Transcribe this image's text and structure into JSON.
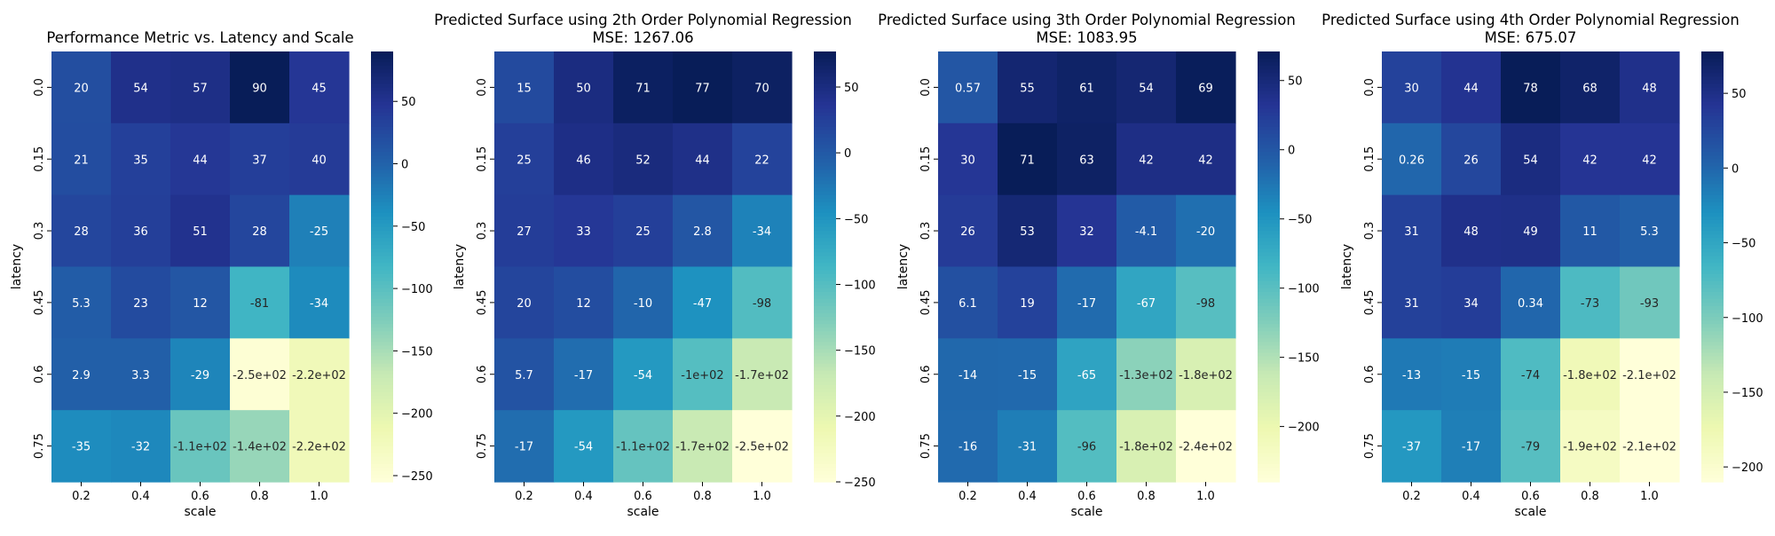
{
  "figure": {
    "colormap": "YlGnBu"
  },
  "chart_data": [
    {
      "type": "heatmap",
      "title": "Performance Metric vs. Latency and Scale",
      "subtitle": "",
      "xlabel": "scale",
      "ylabel": "latency",
      "x_ticks": [
        "0.2",
        "0.4",
        "0.6",
        "0.8",
        "1.0"
      ],
      "y_ticks": [
        "0.0",
        "0.15",
        "0.3",
        "0.45",
        "0.6",
        "0.75"
      ],
      "values": [
        [
          20,
          54,
          57,
          90,
          45
        ],
        [
          21,
          35,
          44,
          37,
          40
        ],
        [
          28,
          36,
          51,
          28,
          -25
        ],
        [
          5.3,
          23,
          12,
          -81,
          -34
        ],
        [
          2.9,
          3.3,
          -29,
          -250,
          -220
        ],
        [
          -35,
          -32,
          -110,
          -140,
          -220
        ]
      ],
      "labels": [
        [
          "20",
          "54",
          "57",
          "90",
          "45"
        ],
        [
          "21",
          "35",
          "44",
          "37",
          "40"
        ],
        [
          "28",
          "36",
          "51",
          "28",
          "-25"
        ],
        [
          "5.3",
          "23",
          "12",
          "-81",
          "-34"
        ],
        [
          "2.9",
          "3.3",
          "-29",
          "-2.5e+02",
          "-2.2e+02"
        ],
        [
          "-35",
          "-32",
          "-1.1e+02",
          "-1.4e+02",
          "-2.2e+02"
        ]
      ],
      "vmin": -255,
      "vmax": 90,
      "colorbar_ticks": [
        50,
        0,
        -50,
        -100,
        -150,
        -200,
        -250
      ],
      "colorbar_labels": [
        "50",
        "0",
        "−50",
        "−100",
        "−150",
        "−200",
        "−250"
      ]
    },
    {
      "type": "heatmap",
      "title": "Predicted Surface using 2th Order Polynomial Regression",
      "subtitle": "MSE: 1267.06",
      "xlabel": "scale",
      "ylabel": "latency",
      "x_ticks": [
        "0.2",
        "0.4",
        "0.6",
        "0.8",
        "1.0"
      ],
      "y_ticks": [
        "0.0",
        "0.15",
        "0.3",
        "0.45",
        "0.6",
        "0.75"
      ],
      "values": [
        [
          15,
          50,
          71,
          77,
          70
        ],
        [
          25,
          46,
          52,
          44,
          22
        ],
        [
          27,
          33,
          25,
          2.8,
          -34
        ],
        [
          20,
          12,
          -10,
          -47,
          -98
        ],
        [
          5.7,
          -17,
          -54,
          -100,
          -170
        ],
        [
          -17,
          -54,
          -110,
          -170,
          -250
        ]
      ],
      "labels": [
        [
          "15",
          "50",
          "71",
          "77",
          "70"
        ],
        [
          "25",
          "46",
          "52",
          "44",
          "22"
        ],
        [
          "27",
          "33",
          "25",
          "2.8",
          "-34"
        ],
        [
          "20",
          "12",
          "-10",
          "-47",
          "-98"
        ],
        [
          "5.7",
          "-17",
          "-54",
          "-1e+02",
          "-1.7e+02"
        ],
        [
          "-17",
          "-54",
          "-1.1e+02",
          "-1.7e+02",
          "-2.5e+02"
        ]
      ],
      "vmin": -250,
      "vmax": 77,
      "colorbar_ticks": [
        50,
        0,
        -50,
        -100,
        -150,
        -200,
        -250
      ],
      "colorbar_labels": [
        "50",
        "0",
        "−50",
        "−100",
        "−150",
        "−200",
        "−250"
      ]
    },
    {
      "type": "heatmap",
      "title": "Predicted Surface using 3th Order Polynomial Regression",
      "subtitle": "MSE: 1083.95",
      "xlabel": "scale",
      "ylabel": "latency",
      "x_ticks": [
        "0.2",
        "0.4",
        "0.6",
        "0.8",
        "1.0"
      ],
      "y_ticks": [
        "0.0",
        "0.15",
        "0.3",
        "0.45",
        "0.6",
        "0.75"
      ],
      "values": [
        [
          0.57,
          55,
          61,
          54,
          69
        ],
        [
          30,
          71,
          63,
          42,
          42
        ],
        [
          26,
          53,
          32,
          -4.1,
          -20
        ],
        [
          6.1,
          19,
          -17,
          -67,
          -98
        ],
        [
          -14,
          -15,
          -65,
          -130,
          -180
        ],
        [
          -16,
          -31,
          -96,
          -180,
          -240
        ]
      ],
      "labels": [
        [
          "0.57",
          "55",
          "61",
          "54",
          "69"
        ],
        [
          "30",
          "71",
          "63",
          "42",
          "42"
        ],
        [
          "26",
          "53",
          "32",
          "-4.1",
          "-20"
        ],
        [
          "6.1",
          "19",
          "-17",
          "-67",
          "-98"
        ],
        [
          "-14",
          "-15",
          "-65",
          "-1.3e+02",
          "-1.8e+02"
        ],
        [
          "-16",
          "-31",
          "-96",
          "-1.8e+02",
          "-2.4e+02"
        ]
      ],
      "vmin": -240,
      "vmax": 71,
      "colorbar_ticks": [
        50,
        0,
        -50,
        -100,
        -150,
        -200
      ],
      "colorbar_labels": [
        "50",
        "0",
        "−50",
        "−100",
        "−150",
        "−200"
      ]
    },
    {
      "type": "heatmap",
      "title": "Predicted Surface using 4th Order Polynomial Regression",
      "subtitle": "MSE: 675.07",
      "xlabel": "scale",
      "ylabel": "latency",
      "x_ticks": [
        "0.2",
        "0.4",
        "0.6",
        "0.8",
        "1.0"
      ],
      "y_ticks": [
        "0.0",
        "0.15",
        "0.3",
        "0.45",
        "0.6",
        "0.75"
      ],
      "values": [
        [
          30,
          44,
          78,
          68,
          48
        ],
        [
          0.26,
          26,
          54,
          42,
          42
        ],
        [
          31,
          48,
          49,
          11,
          5.3
        ],
        [
          31,
          34,
          0.34,
          -73,
          -93
        ],
        [
          -13,
          -15,
          -74,
          -180,
          -210
        ],
        [
          -37,
          -17,
          -79,
          -190,
          -210
        ]
      ],
      "labels": [
        [
          "30",
          "44",
          "78",
          "68",
          "48"
        ],
        [
          "0.26",
          "26",
          "54",
          "42",
          "42"
        ],
        [
          "31",
          "48",
          "49",
          "11",
          "5.3"
        ],
        [
          "31",
          "34",
          "0.34",
          "-73",
          "-93"
        ],
        [
          "-13",
          "-15",
          "-74",
          "-1.8e+02",
          "-2.1e+02"
        ],
        [
          "-37",
          "-17",
          "-79",
          "-1.9e+02",
          "-2.1e+02"
        ]
      ],
      "vmin": -210,
      "vmax": 78,
      "colorbar_ticks": [
        50,
        0,
        -50,
        -100,
        -150,
        -200
      ],
      "colorbar_labels": [
        "50",
        "0",
        "−50",
        "−100",
        "−150",
        "−200"
      ]
    }
  ]
}
